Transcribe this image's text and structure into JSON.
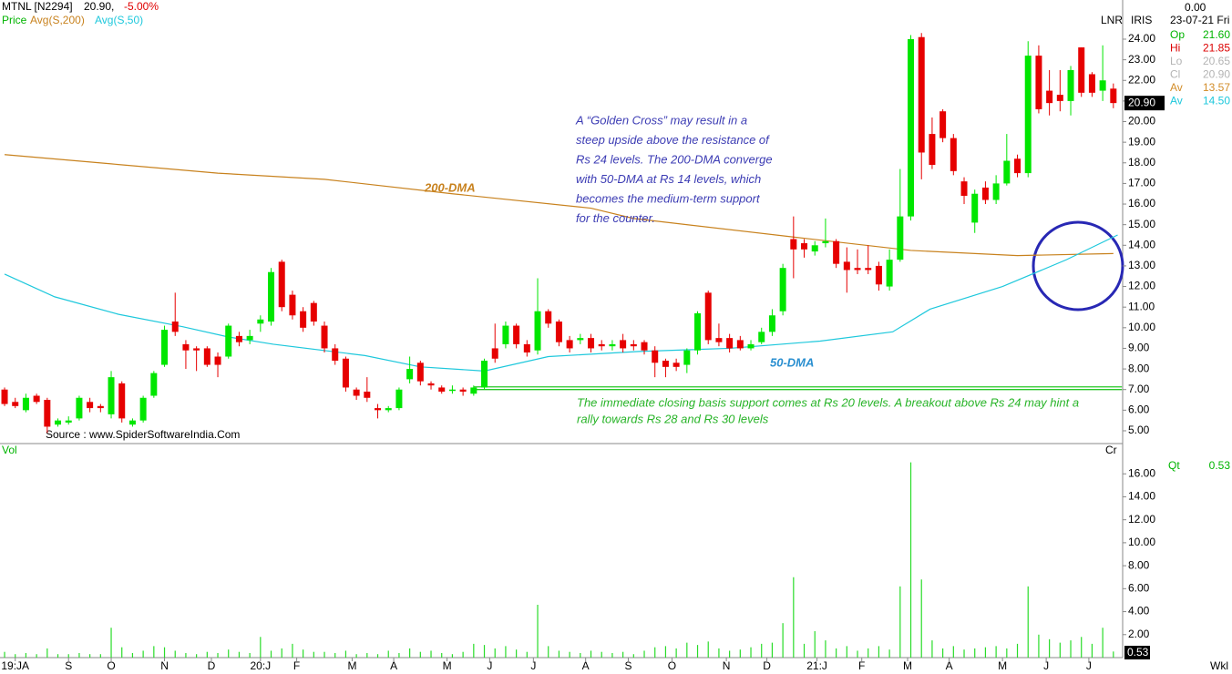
{
  "header": {
    "symbol": "MTNL [N2294]",
    "last": "20.90,",
    "change": "-5.00%",
    "price_label": "Price",
    "avg200_label": "Avg(S,200)",
    "avg50_label": "Avg(S,50)",
    "lnr": "LNR",
    "iris": "IRIS",
    "top_value": "0.00",
    "date": "23-07-21 Fri",
    "source": "Source : www.SpiderSoftwareIndia.Com",
    "wkl": "Wkl"
  },
  "info": [
    {
      "label": "Op",
      "value": "21.60",
      "color": "#00b400"
    },
    {
      "label": "Hi",
      "value": "21.85",
      "color": "#dc0000"
    },
    {
      "label": "Lo",
      "value": "20.65",
      "color": "#b4b4b4"
    },
    {
      "label": "Cl",
      "value": "20.90",
      "color": "#b4b4b4"
    },
    {
      "label": "Av",
      "value": "13.57",
      "color": "#d28c28"
    },
    {
      "label": "Av",
      "value": "14.50",
      "color": "#1ec8dc"
    }
  ],
  "chart_data": [
    {
      "type": "candlestick",
      "up_color": "#00e600",
      "down_color": "#e60000",
      "open": [
        7.0,
        6.4,
        6.0,
        6.7,
        6.5,
        5.3,
        5.4,
        5.6,
        6.4,
        6.2,
        5.8,
        7.3,
        5.3,
        5.5,
        6.7,
        8.2,
        10.3,
        9.2,
        9.0,
        9.0,
        8.6,
        8.6,
        9.6,
        9.4,
        10.2,
        10.3,
        13.2,
        11.6,
        10.8,
        11.2,
        10.1,
        9.0,
        8.5,
        7.0,
        6.9,
        6.1,
        6.0,
        6.1,
        7.5,
        8.3,
        7.3,
        7.1,
        7.0,
        7.0,
        6.8,
        7.1,
        9.0,
        9.2,
        10.1,
        9.2,
        8.9,
        10.8,
        10.3,
        9.4,
        9.4,
        9.5,
        9.2,
        9.1,
        9.4,
        9.2,
        9.3,
        8.9,
        8.4,
        8.3,
        8.2,
        8.9,
        11.7,
        9.5,
        9.5,
        9.4,
        9.0,
        9.3,
        9.8,
        10.8,
        14.3,
        14.1,
        13.7,
        14.1,
        14.2,
        13.2,
        12.9,
        12.9,
        13.0,
        12.0,
        13.3,
        15.4,
        24.1,
        19.4,
        20.5,
        19.2,
        17.1,
        15.1,
        16.8,
        16.2,
        17.0,
        18.2,
        17.5,
        23.2,
        21.5,
        21.3,
        21.0,
        23.6,
        22.3,
        21.5,
        21.6
      ],
      "high": [
        7.1,
        6.6,
        6.8,
        6.8,
        6.6,
        5.6,
        5.7,
        6.7,
        6.6,
        6.3,
        7.9,
        7.4,
        5.6,
        6.7,
        7.9,
        10.1,
        11.7,
        9.4,
        9.1,
        9.1,
        8.8,
        10.2,
        9.8,
        9.9,
        10.6,
        12.9,
        13.3,
        11.8,
        11.0,
        11.3,
        10.3,
        9.2,
        8.6,
        7.1,
        7.6,
        6.3,
        6.2,
        7.1,
        8.6,
        8.4,
        7.4,
        7.2,
        7.2,
        7.1,
        7.2,
        8.5,
        10.2,
        10.3,
        10.2,
        9.4,
        12.4,
        10.9,
        10.4,
        9.6,
        9.7,
        9.7,
        9.4,
        9.4,
        9.7,
        9.4,
        9.4,
        9.1,
        8.5,
        8.5,
        9.0,
        10.8,
        11.8,
        10.2,
        9.7,
        9.6,
        9.4,
        10.0,
        10.9,
        13.1,
        15.4,
        14.3,
        14.2,
        15.3,
        14.3,
        13.9,
        13.8,
        14.0,
        13.2,
        13.8,
        17.7,
        24.2,
        24.3,
        20.2,
        20.6,
        19.4,
        17.3,
        16.7,
        17.1,
        17.4,
        19.4,
        18.4,
        23.9,
        23.7,
        22.5,
        22.5,
        22.7,
        23.6,
        22.4,
        23.7,
        21.85
      ],
      "low": [
        6.2,
        6.1,
        5.9,
        6.3,
        4.9,
        5.2,
        5.3,
        5.5,
        5.9,
        5.9,
        5.6,
        5.4,
        5.2,
        5.4,
        6.6,
        8.1,
        9.6,
        8.0,
        7.9,
        8.1,
        7.6,
        8.5,
        9.1,
        9.2,
        9.8,
        10.1,
        10.8,
        10.4,
        9.8,
        10.1,
        8.8,
        8.2,
        6.9,
        6.5,
        6.4,
        5.6,
        5.9,
        6.0,
        7.3,
        7.2,
        7.0,
        6.8,
        6.8,
        6.7,
        6.7,
        7.0,
        8.3,
        9.0,
        9.0,
        8.6,
        8.7,
        10.0,
        9.1,
        8.8,
        9.2,
        8.8,
        8.9,
        8.9,
        8.8,
        8.9,
        8.7,
        7.6,
        7.6,
        7.9,
        7.8,
        8.7,
        9.2,
        9.1,
        8.8,
        8.9,
        8.9,
        9.2,
        9.6,
        10.6,
        12.4,
        13.4,
        13.5,
        13.9,
        12.9,
        11.7,
        12.6,
        12.6,
        11.8,
        11.8,
        13.2,
        15.2,
        17.2,
        17.7,
        19.0,
        17.4,
        16.0,
        14.6,
        16.0,
        16.0,
        16.9,
        17.3,
        17.3,
        20.4,
        20.3,
        20.5,
        20.3,
        21.2,
        21.2,
        21.0,
        20.65
      ],
      "close": [
        6.3,
        6.2,
        6.6,
        6.4,
        5.2,
        5.5,
        5.5,
        6.6,
        6.1,
        6.1,
        7.6,
        5.6,
        5.5,
        6.6,
        7.8,
        9.9,
        9.8,
        8.9,
        8.9,
        8.2,
        8.2,
        10.1,
        9.3,
        9.6,
        10.4,
        12.7,
        11.0,
        10.6,
        10.0,
        10.3,
        9.0,
        8.4,
        7.1,
        6.7,
        6.6,
        6.0,
        6.1,
        7.0,
        8.0,
        7.4,
        7.2,
        6.9,
        7.0,
        6.9,
        7.1,
        8.4,
        8.5,
        10.1,
        9.2,
        8.8,
        10.8,
        10.2,
        9.3,
        9.0,
        9.5,
        9.0,
        9.1,
        9.2,
        9.0,
        9.1,
        8.9,
        8.3,
        8.1,
        8.1,
        8.9,
        10.7,
        9.4,
        9.3,
        9.0,
        9.0,
        9.2,
        9.8,
        10.6,
        12.9,
        13.8,
        13.8,
        14.0,
        14.2,
        13.1,
        12.8,
        12.8,
        12.8,
        12.1,
        13.3,
        15.4,
        24.0,
        18.5,
        17.9,
        19.2,
        17.6,
        16.4,
        16.5,
        16.2,
        17.0,
        18.1,
        17.5,
        23.2,
        20.6,
        20.9,
        21.0,
        22.5,
        21.4,
        21.4,
        22.0,
        20.9
      ],
      "moving_averages": [
        {
          "name": "200-DMA",
          "color": "#c8821e",
          "x": [
            0,
            10,
            20,
            30,
            42,
            55,
            59,
            74,
            85,
            95,
            104
          ],
          "values": [
            18.4,
            17.95,
            17.5,
            17.2,
            16.5,
            15.8,
            15.3,
            14.4,
            13.75,
            13.5,
            13.6
          ]
        },
        {
          "name": "50-DMA",
          "color": "#1ec8dc",
          "x": [
            0,
            4.7,
            10.7,
            16.7,
            21,
            25.2,
            33.8,
            39,
            45,
            51,
            59.5,
            68,
            76.5,
            83.3,
            86.8,
            93.6,
            99.6,
            104.4
          ],
          "values": [
            12.6,
            11.5,
            10.65,
            10.05,
            9.55,
            9.2,
            8.65,
            8.1,
            7.9,
            8.6,
            8.85,
            9.0,
            9.35,
            9.8,
            10.9,
            12.0,
            13.3,
            14.5
          ]
        }
      ],
      "support_lines": {
        "color": "#28c828",
        "x": [
          44,
          104.8
        ],
        "values": [
          7.0,
          7.13
        ]
      },
      "xlim": [
        -0.43,
        104.87
      ],
      "ylim": [
        4.38,
        25.9
      ],
      "yticks": [
        {
          "value": 24,
          "label": "24.00"
        },
        {
          "value": 23,
          "label": "23.00"
        },
        {
          "value": 22,
          "label": "22.00"
        },
        {
          "value": 21,
          "label": "21.00"
        },
        {
          "value": 20,
          "label": "20.00"
        },
        {
          "value": 19,
          "label": "19.00"
        },
        {
          "value": 18,
          "label": "18.00"
        },
        {
          "value": 17,
          "label": "17.00"
        },
        {
          "value": 16,
          "label": "16.00"
        },
        {
          "value": 15,
          "label": "15.00"
        },
        {
          "value": 14,
          "label": "14.00"
        },
        {
          "value": 13,
          "label": "13.00"
        },
        {
          "value": 12,
          "label": "12.00"
        },
        {
          "value": 11,
          "label": "11.00"
        },
        {
          "value": 10,
          "label": "10.00"
        },
        {
          "value": 9,
          "label": "9.00"
        },
        {
          "value": 8,
          "label": "8.00"
        },
        {
          "value": 7,
          "label": "7.00"
        },
        {
          "value": 6,
          "label": "6.00"
        },
        {
          "value": 5,
          "label": "5.00"
        }
      ],
      "last_badge": "20.90",
      "xticks": [
        {
          "value": 1,
          "label": "19:JA"
        },
        {
          "value": 6,
          "label": "S"
        },
        {
          "value": 10,
          "label": "O"
        },
        {
          "value": 15,
          "label": "N"
        },
        {
          "value": 19.4,
          "label": "D"
        },
        {
          "value": 24,
          "label": "20:J"
        },
        {
          "value": 27.4,
          "label": "F"
        },
        {
          "value": 32.6,
          "label": "M"
        },
        {
          "value": 36.5,
          "label": "A"
        },
        {
          "value": 41.5,
          "label": "M"
        },
        {
          "value": 45.5,
          "label": "J"
        },
        {
          "value": 49.6,
          "label": "J"
        },
        {
          "value": 54.5,
          "label": "A"
        },
        {
          "value": 58.5,
          "label": "S"
        },
        {
          "value": 62.6,
          "label": "O"
        },
        {
          "value": 67.7,
          "label": "N"
        },
        {
          "value": 71.5,
          "label": "D"
        },
        {
          "value": 76.2,
          "label": "21:J"
        },
        {
          "value": 80.4,
          "label": "F"
        },
        {
          "value": 84.7,
          "label": "M"
        },
        {
          "value": 88.6,
          "label": "A"
        },
        {
          "value": 93.6,
          "label": "M"
        },
        {
          "value": 97.7,
          "label": "J"
        },
        {
          "value": 101.7,
          "label": "J"
        }
      ],
      "annotations": [
        {
          "lines": [
            "A “Golden Cross” may result in a",
            "steep upside above the resistance of",
            "Rs 24 levels. The 200-DMA converge",
            "with 50-DMA at Rs 14 levels, which",
            "becomes the medium-term support",
            "for the counter."
          ],
          "color": "#3c3cb4"
        },
        {
          "lines": [
            "The immediate closing basis support comes at Rs 20 levels. A breakout above Rs 24 may hint a",
            "rally towards Rs 28 and Rs 30 levels"
          ],
          "color": "#28b428"
        }
      ]
    },
    {
      "type": "volume",
      "color": "#28dc28",
      "label": "Vol",
      "cr": "Cr",
      "qt_label": "Qt",
      "qt_value": "0.53",
      "last_badge": "0.53",
      "values": [
        0.5,
        0.3,
        0.4,
        0.3,
        0.8,
        0.3,
        0.3,
        0.4,
        0.3,
        0.3,
        2.6,
        0.9,
        0.4,
        0.6,
        1.0,
        0.9,
        0.6,
        0.4,
        0.3,
        0.5,
        0.4,
        0.7,
        0.5,
        0.4,
        1.8,
        0.6,
        0.8,
        1.2,
        0.7,
        0.5,
        0.5,
        0.4,
        0.6,
        0.3,
        0.4,
        0.3,
        0.6,
        0.4,
        0.8,
        0.5,
        0.6,
        0.4,
        0.3,
        0.5,
        1.2,
        1.1,
        0.8,
        1.0,
        0.7,
        0.5,
        4.6,
        1.0,
        0.6,
        0.5,
        0.4,
        0.6,
        0.5,
        0.4,
        0.5,
        0.3,
        0.6,
        0.9,
        1.0,
        0.8,
        1.3,
        1.1,
        1.4,
        0.8,
        0.6,
        0.7,
        0.9,
        1.2,
        1.3,
        3.0,
        7.0,
        1.2,
        2.3,
        1.5,
        0.8,
        1.0,
        0.6,
        0.8,
        1.0,
        0.7,
        6.2,
        17.0,
        6.8,
        1.5,
        0.8,
        1.0,
        0.7,
        0.8,
        0.9,
        1.0,
        0.8,
        1.2,
        6.2,
        2.0,
        1.6,
        1.3,
        1.5,
        1.8,
        1.2,
        2.6,
        0.53
      ],
      "ylim": [
        0,
        18
      ],
      "yticks": [
        {
          "value": 16,
          "label": "16.00"
        },
        {
          "value": 14,
          "label": "14.00"
        },
        {
          "value": 12,
          "label": "12.00"
        },
        {
          "value": 10,
          "label": "10.00"
        },
        {
          "value": 8,
          "label": "8.00"
        },
        {
          "value": 6,
          "label": "6.00"
        },
        {
          "value": 4,
          "label": "4.00"
        },
        {
          "value": 2,
          "label": "2.00"
        }
      ]
    }
  ]
}
